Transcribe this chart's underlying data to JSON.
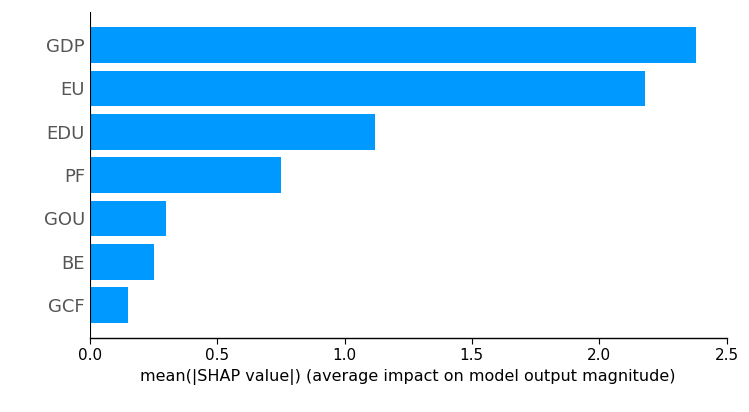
{
  "categories": [
    "GCF",
    "BE",
    "GOU",
    "PF",
    "EDU",
    "EU",
    "GDP"
  ],
  "values": [
    0.15,
    0.25,
    0.3,
    0.75,
    1.12,
    2.18,
    2.38
  ],
  "bar_color": "#0099ff",
  "xlabel": "mean(|SHAP value|) (average impact on model output magnitude)",
  "xlim": [
    0,
    2.5
  ],
  "xticks": [
    0.0,
    0.5,
    1.0,
    1.5,
    2.0,
    2.5
  ],
  "bar_height": 0.82,
  "figsize": [
    7.49,
    4.12
  ],
  "dpi": 100,
  "xlabel_fontsize": 11.5,
  "ytick_fontsize": 13,
  "xtick_fontsize": 11
}
